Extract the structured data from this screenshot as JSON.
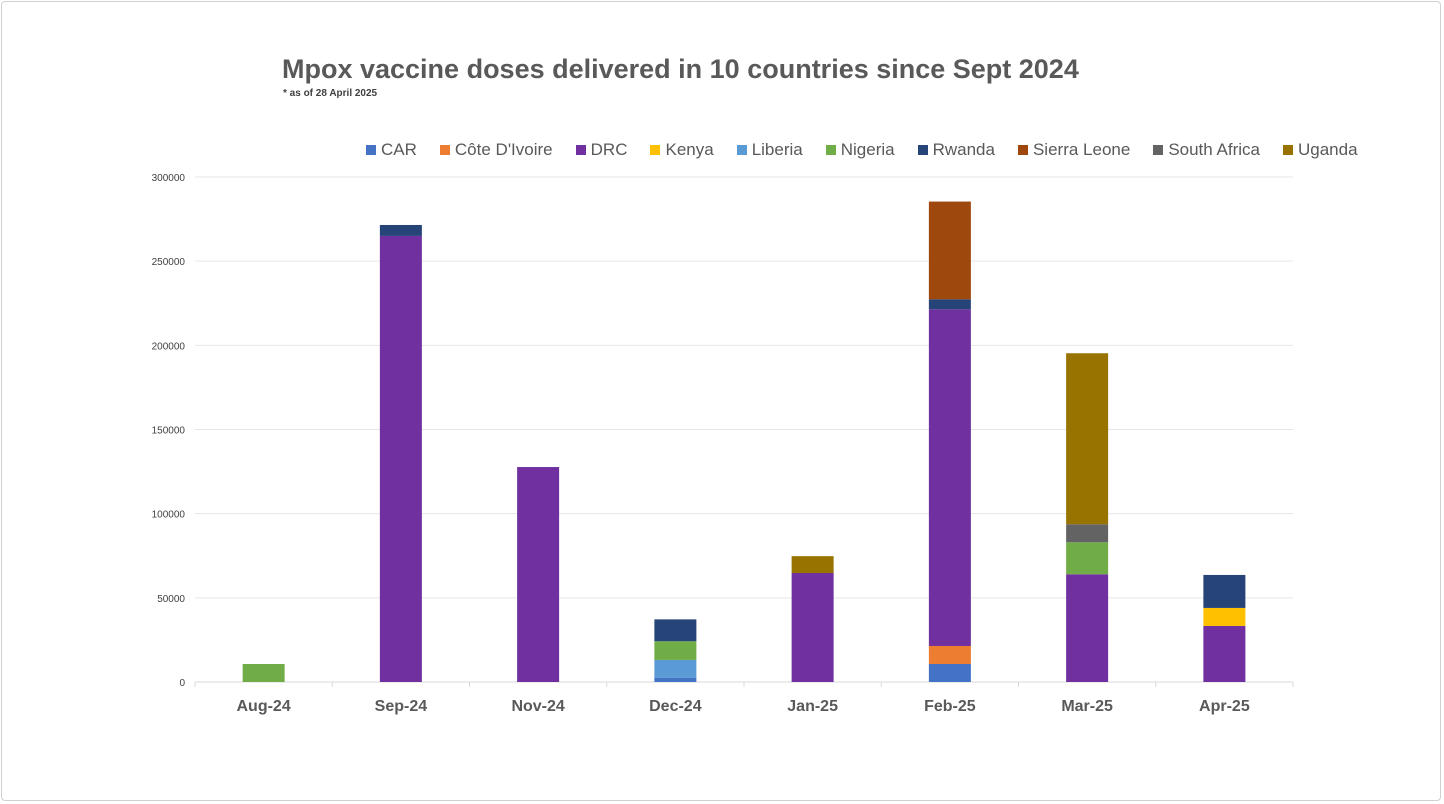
{
  "chart_data": {
    "type": "bar",
    "stacked": true,
    "title": "Mpox vaccine doses delivered in 10 countries since Sept 2024",
    "subtitle": "* as of 28 April 2025",
    "xlabel": "",
    "ylabel": "",
    "ylim": [
      0,
      300000
    ],
    "yticks": [
      "0",
      "50000",
      "100000",
      "150000",
      "200000",
      "250000",
      "300000"
    ],
    "grid": true,
    "legend_position": "top-right",
    "categories": [
      "Aug-24",
      "Sep-24",
      "Nov-24",
      "Dec-24",
      "Jan-25",
      "Feb-25",
      "Mar-25",
      "Apr-25"
    ],
    "series": [
      {
        "name": "CAR",
        "color": "#4472c4",
        "values": [
          0,
          0,
          0,
          2400,
          0,
          10700,
          0,
          0
        ]
      },
      {
        "name": "Côte D'Ivoire",
        "color": "#ed7d31",
        "values": [
          0,
          0,
          0,
          0,
          0,
          10700,
          0,
          0
        ]
      },
      {
        "name": "DRC",
        "color": "#7030a0",
        "values": [
          0,
          265000,
          127700,
          0,
          64750,
          200000,
          64000,
          33300
        ]
      },
      {
        "name": "Kenya",
        "color": "#ffc000",
        "values": [
          0,
          0,
          0,
          0,
          0,
          0,
          0,
          10700
        ]
      },
      {
        "name": "Liberia",
        "color": "#5b9bd5",
        "values": [
          0,
          0,
          0,
          10700,
          0,
          0,
          0,
          0
        ]
      },
      {
        "name": "Nigeria",
        "color": "#70ad47",
        "values": [
          10700,
          0,
          0,
          11100,
          0,
          0,
          19000,
          0
        ]
      },
      {
        "name": "Rwanda",
        "color": "#264478",
        "values": [
          0,
          6500,
          0,
          13000,
          0,
          6000,
          0,
          19600
        ]
      },
      {
        "name": "Sierra Leone",
        "color": "#9e480e",
        "values": [
          0,
          0,
          0,
          0,
          0,
          58000,
          0,
          0
        ]
      },
      {
        "name": "South Africa",
        "color": "#636363",
        "values": [
          0,
          0,
          0,
          0,
          0,
          0,
          10700,
          0
        ]
      },
      {
        "name": "Uganda",
        "color": "#997300",
        "values": [
          0,
          0,
          0,
          0,
          10000,
          0,
          101600,
          0
        ]
      }
    ]
  }
}
